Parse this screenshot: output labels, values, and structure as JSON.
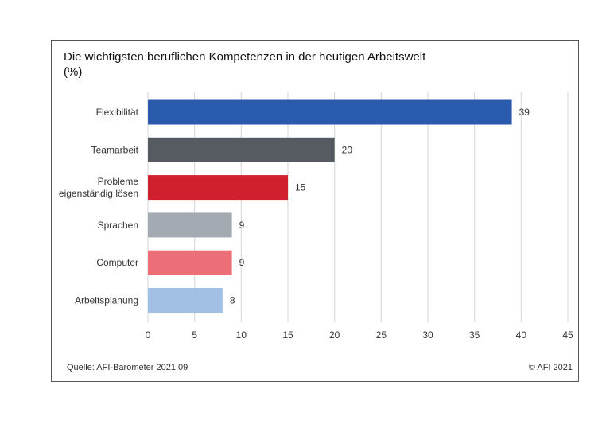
{
  "chart_data": {
    "type": "bar",
    "orientation": "horizontal",
    "title": "Die wichtigsten beruflichen Kompetenzen in der heutigen Arbeitswelt",
    "subtitle": "(%)",
    "categories": [
      [
        "Flexibilität"
      ],
      [
        "Teamarbeit"
      ],
      [
        "Probleme",
        "eigenständig lösen"
      ],
      [
        "Sprachen"
      ],
      [
        "Computer"
      ],
      [
        "Arbeitsplanung"
      ]
    ],
    "values": [
      39,
      20,
      15,
      9,
      9,
      8
    ],
    "bar_colors": [
      "#2a5aab",
      "#565b62",
      "#d0202e",
      "#a4aab1",
      "#ec6e77",
      "#a2bfe6"
    ],
    "xlim": [
      0,
      45
    ],
    "xticks": [
      0,
      5,
      10,
      15,
      20,
      25,
      30,
      35,
      40,
      45
    ],
    "grid": true
  },
  "footer": {
    "source": "Quelle: AFI-Barometer 2021.09",
    "copyright": "© AFI 2021"
  }
}
